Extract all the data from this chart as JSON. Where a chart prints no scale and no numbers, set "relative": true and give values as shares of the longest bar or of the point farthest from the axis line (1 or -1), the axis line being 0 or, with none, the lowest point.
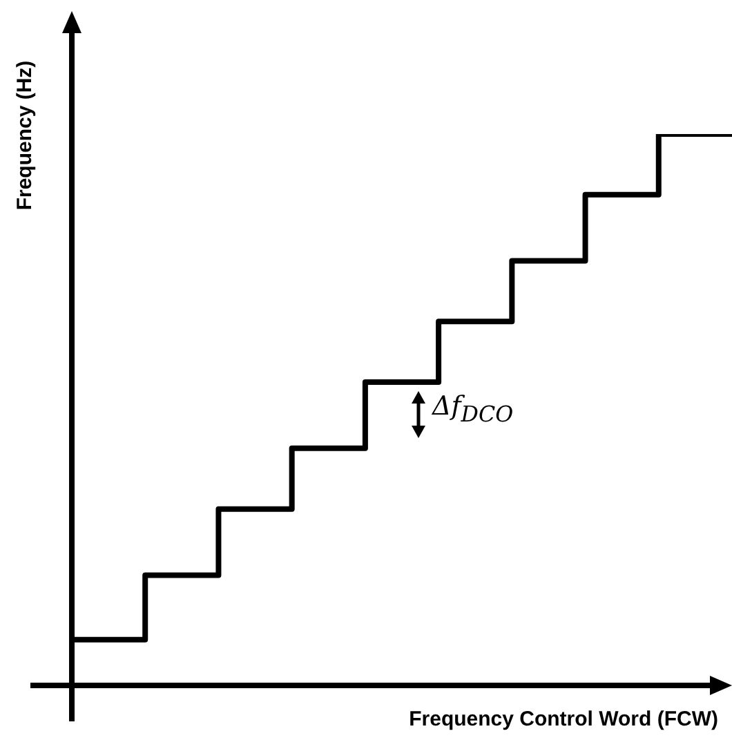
{
  "chart_data": {
    "type": "step",
    "relative": true,
    "xlabel": "Frequency Control Word (FCW)",
    "ylabel": "Frequency (Hz)",
    "categories": [
      null,
      null,
      null,
      null,
      null,
      null,
      null,
      null,
      null,
      null
    ],
    "values": [
      0.083,
      0.2,
      0.32,
      0.43,
      0.55,
      0.66,
      0.77,
      0.89,
      1,
      1
    ],
    "color": "#000000",
    "grid": false,
    "marker": "none",
    "line_style": "solid",
    "annotations": [
      "Δf$_{DCO}$"
    ]
  }
}
